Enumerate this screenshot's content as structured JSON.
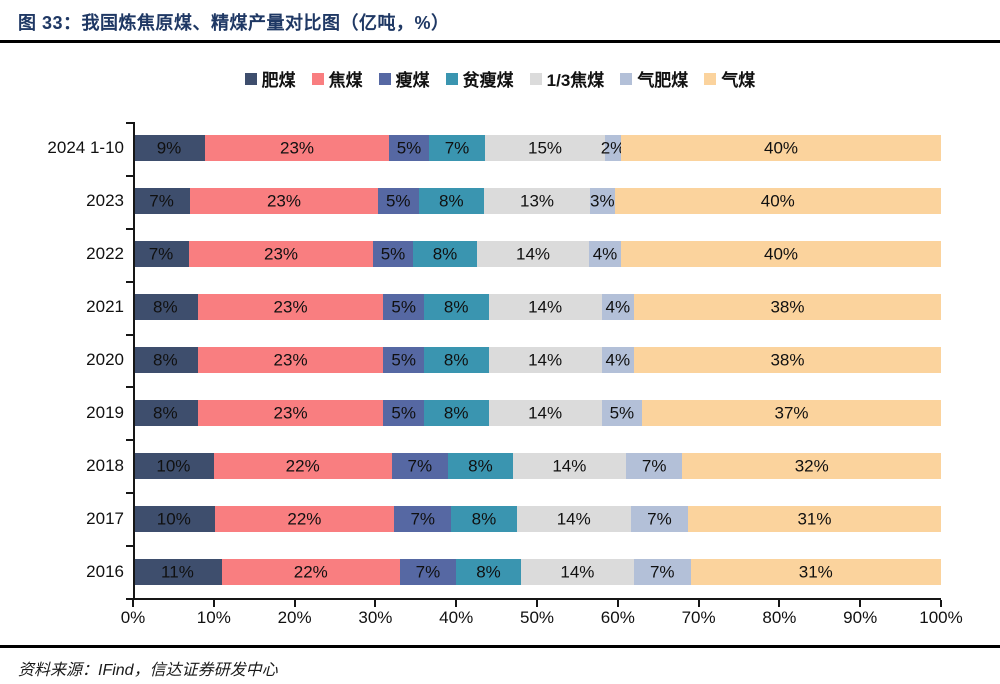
{
  "figure": {
    "title": "图 33：我国炼焦原煤、精煤产量对比图（亿吨，%）",
    "source": "资料来源：IFind，信达证券研发中心"
  },
  "chart_data": {
    "type": "bar",
    "orientation": "horizontal",
    "stacked": true,
    "unit": "%",
    "value_suffix": "%",
    "grid": false,
    "legend_position": "top",
    "categories": [
      "2024 1-10",
      "2023",
      "2022",
      "2021",
      "2020",
      "2019",
      "2018",
      "2017",
      "2016"
    ],
    "series": [
      {
        "name": "肥煤",
        "color": "#3e4e6d",
        "values": [
          9,
          7,
          7,
          8,
          8,
          8,
          10,
          10,
          11
        ]
      },
      {
        "name": "焦煤",
        "color": "#f97e80",
        "values": [
          23,
          23,
          23,
          23,
          23,
          23,
          22,
          22,
          22
        ]
      },
      {
        "name": "瘦煤",
        "color": "#5668a3",
        "values": [
          5,
          5,
          5,
          5,
          5,
          5,
          7,
          7,
          7
        ]
      },
      {
        "name": "贫瘦煤",
        "color": "#3a95b0",
        "values": [
          7,
          8,
          8,
          8,
          8,
          8,
          8,
          8,
          8
        ]
      },
      {
        "name": "1/3焦煤",
        "color": "#dbdbdb",
        "values": [
          15,
          13,
          14,
          14,
          14,
          14,
          14,
          14,
          14
        ]
      },
      {
        "name": "气肥煤",
        "color": "#b3c0d8",
        "values": [
          2,
          3,
          4,
          4,
          4,
          5,
          7,
          7,
          7
        ]
      },
      {
        "name": "气煤",
        "color": "#fbd39d",
        "values": [
          40,
          40,
          40,
          38,
          38,
          37,
          32,
          31,
          31
        ]
      }
    ],
    "xlim": [
      0,
      100
    ],
    "x_ticks": [
      "0%",
      "10%",
      "20%",
      "30%",
      "40%",
      "50%",
      "60%",
      "70%",
      "80%",
      "90%",
      "100%"
    ]
  }
}
